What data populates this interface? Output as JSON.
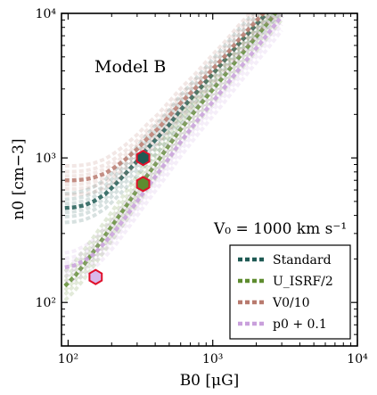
{
  "chart_data": {
    "type": "line",
    "xlabel": "B0 [μG]",
    "ylabel": "n0 [cm−3]",
    "xscale": "log",
    "yscale": "log",
    "xlim": [
      90,
      10000
    ],
    "ylim": [
      50,
      10000
    ],
    "x_ticks": [
      100,
      1000,
      10000
    ],
    "y_ticks": [
      100,
      1000,
      10000
    ],
    "x_tick_labels": [
      "10²",
      "10³",
      "10⁴"
    ],
    "y_tick_labels": [
      "10²",
      "10³",
      "10⁴"
    ],
    "grid": false,
    "legend_position": "lower-right",
    "annotations": [
      {
        "text": "Model B",
        "x": 210,
        "y": 3700
      },
      {
        "text": "V₀ = 1000 km s⁻¹",
        "x": 1800,
        "y": 320
      }
    ],
    "series": [
      {
        "name": "Standard",
        "color": "#1f5a54",
        "x": [
          95,
          110,
          130,
          150,
          180,
          210,
          250,
          300,
          350,
          420,
          500,
          600,
          750,
          950,
          1200,
          1500,
          1900,
          2400,
          3000
        ],
        "y": [
          450,
          455,
          470,
          500,
          560,
          650,
          780,
          950,
          1150,
          1400,
          1700,
          2150,
          2750,
          3600,
          4700,
          6100,
          7900,
          10200,
          13000
        ]
      },
      {
        "name": "U_ISRF/2",
        "color": "#5e8c2f",
        "x": [
          95,
          110,
          130,
          150,
          180,
          210,
          250,
          300,
          350,
          420,
          500,
          600,
          750,
          950,
          1200,
          1500,
          1900,
          2400,
          3000
        ],
        "y": [
          130,
          150,
          185,
          225,
          290,
          360,
          460,
          600,
          750,
          960,
          1230,
          1580,
          2100,
          2800,
          3700,
          4900,
          6500,
          8600,
          11400
        ]
      },
      {
        "name": "V0/10",
        "color": "#b87a6e",
        "x": [
          95,
          110,
          130,
          150,
          180,
          210,
          250,
          300,
          350,
          420,
          500,
          600,
          750,
          950,
          1200,
          1500,
          1900,
          2400,
          3000
        ],
        "y": [
          700,
          700,
          710,
          730,
          780,
          860,
          980,
          1150,
          1350,
          1600,
          1950,
          2400,
          3000,
          3900,
          5000,
          6500,
          8400,
          10800,
          13500
        ]
      },
      {
        "name": "p0 + 0.1",
        "color": "#c9a0dc",
        "x": [
          95,
          110,
          130,
          150,
          180,
          210,
          250,
          300,
          350,
          420,
          500,
          600,
          750,
          950,
          1200,
          1500,
          1900,
          2400,
          3000
        ],
        "y": [
          175,
          180,
          195,
          215,
          260,
          310,
          390,
          500,
          620,
          790,
          1000,
          1290,
          1720,
          2300,
          3050,
          4050,
          5400,
          7200,
          9600
        ]
      }
    ],
    "markers": [
      {
        "x": 330,
        "y": 1000,
        "fill": "#1f5a54",
        "edge": "#e0102a"
      },
      {
        "x": 330,
        "y": 660,
        "fill": "#5e8c2f",
        "edge": "#e0102a"
      },
      {
        "x": 155,
        "y": 150,
        "fill": "#d9b8ea",
        "edge": "#e0102a"
      }
    ]
  }
}
